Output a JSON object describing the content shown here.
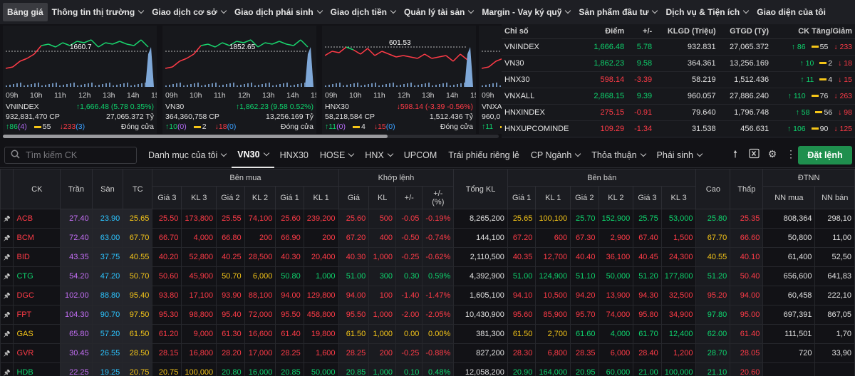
{
  "nav": {
    "items": [
      "Bảng giá",
      "Thông tin thị trường",
      "Giao dịch cơ sở",
      "Giao dịch phái sinh",
      "Giao dịch tiền",
      "Quản lý tài sản",
      "Margin - Vay ký quỹ",
      "Sản phẩm đầu tư",
      "Dịch vụ & Tiện ích",
      "Giao diện của tôi"
    ]
  },
  "index_cards": [
    {
      "name": "VNINDEX",
      "ref_label": "1660.7",
      "change": "↑1,666.48 (5.78 0.35%)",
      "volume": "932,831,470 CP",
      "value": "27,065.372 Tỷ",
      "up": "↑86",
      "ceil": "(4)",
      "ref": "55",
      "down": "↓233",
      "floor": "(3)",
      "status": "Đóng cửa",
      "dir": "up"
    },
    {
      "name": "VN30",
      "ref_label": "1852.65",
      "change": "↑1,862.23 (9.58 0.52%)",
      "volume": "364,360,758 CP",
      "value": "13,256.169 Tỷ",
      "up": "↑10",
      "ceil": "(0)",
      "ref": "2",
      "down": "↓18",
      "floor": "(0)",
      "status": "Đóng cửa",
      "dir": "up"
    },
    {
      "name": "HNX30",
      "ref_label": "601.53",
      "change": "↓598.14 (-3.39 -0.56%)",
      "volume": "58,218,584 CP",
      "value": "1,512.436 Tỷ",
      "up": "↑11",
      "ceil": "(0)",
      "ref": "4",
      "down": "↓15",
      "floor": "(0)",
      "status": "Đóng cửa",
      "dir": "down"
    },
    {
      "name": "VNXALL",
      "ref_label": "",
      "change": "",
      "volume": "960,0",
      "value": "",
      "up": "↑11",
      "ceil": "",
      "ref": "",
      "down": "",
      "floor": "",
      "status": "",
      "dir": "up"
    }
  ],
  "time_ticks": [
    "09h",
    "10h",
    "11h",
    "12h",
    "13h",
    "14h",
    "15h"
  ],
  "market": {
    "headers": [
      "Chỉ số",
      "Điểm",
      "+/-",
      "KLGD (Triệu)",
      "GTGD (Tỷ)",
      "CK Tăng/Giảm"
    ],
    "rows": [
      {
        "name": "VNINDEX",
        "point": "1,666.48",
        "chg": "5.78",
        "vol": "932.831",
        "val": "27,065.372",
        "up": "↑ 86",
        "ref": "55",
        "down": "↓ 233",
        "dir": "up"
      },
      {
        "name": "VN30",
        "point": "1,862.23",
        "chg": "9.58",
        "vol": "364.361",
        "val": "13,256.169",
        "up": "↑ 10",
        "ref": "2",
        "down": "↓ 18",
        "dir": "up"
      },
      {
        "name": "HNX30",
        "point": "598.14",
        "chg": "-3.39",
        "vol": "58.219",
        "val": "1,512.436",
        "up": "↑ 11",
        "ref": "4",
        "down": "↓ 15",
        "dir": "down"
      },
      {
        "name": "VNXALL",
        "point": "2,868.15",
        "chg": "9.39",
        "vol": "960.057",
        "val": "27,886.240",
        "up": "↑ 110",
        "ref": "76",
        "down": "↓ 263",
        "dir": "up"
      },
      {
        "name": "HNXINDEX",
        "point": "275.15",
        "chg": "-0.91",
        "vol": "79.640",
        "val": "1,796.748",
        "up": "↑ 58",
        "ref": "56",
        "down": "↓ 98",
        "dir": "down"
      },
      {
        "name": "HNXUPCOMINDE",
        "point": "109.29",
        "chg": "-1.34",
        "vol": "31.538",
        "val": "456.631",
        "up": "↑ 106",
        "ref": "90",
        "down": "↓ 125",
        "dir": "down"
      }
    ]
  },
  "search": {
    "placeholder": "Tìm kiếm CK"
  },
  "tabs": [
    {
      "label": "Danh mục của tôi",
      "chev": true
    },
    {
      "label": "VN30",
      "chev": true,
      "active": true
    },
    {
      "label": "HNX30"
    },
    {
      "label": "HOSE",
      "chev": true
    },
    {
      "label": "HNX",
      "chev": true
    },
    {
      "label": "UPCOM"
    },
    {
      "label": "Trái phiếu riêng lẻ"
    },
    {
      "label": "CP Ngành",
      "chev": true
    },
    {
      "label": "Thỏa thuận",
      "chev": true
    },
    {
      "label": "Phái sinh",
      "chev": true
    }
  ],
  "order_button": "Đặt lệnh",
  "board": {
    "groups": {
      "buy": "Bên mua",
      "match": "Khớp lệnh",
      "sell": "Bên bán",
      "foreign": "ĐTNN"
    },
    "headers": {
      "ck": "CK",
      "ceil": "Trần",
      "floor": "Sàn",
      "ref": "TC",
      "p3": "Giá 3",
      "v3": "KL 3",
      "p2": "Giá 2",
      "v2": "KL 2",
      "p1": "Giá 1",
      "v1": "KL 1",
      "mp": "Giá",
      "mv": "KL",
      "chg": "+/-",
      "pct": "+/-\n(%)",
      "total": "Tổng KL",
      "high": "Cao",
      "low": "Thấp",
      "nnbuy": "NN mua",
      "nnsell": "NN bán"
    },
    "rows": [
      {
        "ck": "ACB",
        "c": "dn",
        "ceil": "27.40",
        "floor": "23.90",
        "ref": "25.65",
        "b": [
          [
            "25.50",
            "173,800",
            "dn"
          ],
          [
            "25.55",
            "74,100",
            "dn"
          ],
          [
            "25.60",
            "239,200",
            "dn"
          ]
        ],
        "m": [
          "25.60",
          "500",
          "-0.05",
          "-0.19%",
          "dn"
        ],
        "total": "8,265,200",
        "s": [
          [
            "25.65",
            "100,100",
            "ref"
          ],
          [
            "25.70",
            "152,900",
            "up"
          ],
          [
            "25.75",
            "53,000",
            "up"
          ]
        ],
        "high": [
          "25.80",
          "up"
        ],
        "low": [
          "25.35",
          "dn"
        ],
        "nnbuy": "808,364",
        "nnsell": "298,10"
      },
      {
        "ck": "BCM",
        "c": "dn",
        "ceil": "72.40",
        "floor": "63.00",
        "ref": "67.70",
        "b": [
          [
            "66.70",
            "4,000",
            "dn"
          ],
          [
            "66.80",
            "200",
            "dn"
          ],
          [
            "66.90",
            "200",
            "dn"
          ]
        ],
        "m": [
          "67.20",
          "400",
          "-0.50",
          "-0.74%",
          "dn"
        ],
        "total": "144,100",
        "s": [
          [
            "67.20",
            "600",
            "dn"
          ],
          [
            "67.30",
            "2,900",
            "dn"
          ],
          [
            "67.40",
            "1,500",
            "dn"
          ]
        ],
        "high": [
          "67.70",
          "ref"
        ],
        "low": [
          "66.60",
          "dn"
        ],
        "nnbuy": "50,800",
        "nnsell": "11,00"
      },
      {
        "ck": "BID",
        "c": "dn",
        "ceil": "43.35",
        "floor": "37.75",
        "ref": "40.55",
        "b": [
          [
            "40.20",
            "52,800",
            "dn"
          ],
          [
            "40.25",
            "28,500",
            "dn"
          ],
          [
            "40.30",
            "20,400",
            "dn"
          ]
        ],
        "m": [
          "40.30",
          "1,000",
          "-0.25",
          "-0.62%",
          "dn"
        ],
        "total": "2,110,500",
        "s": [
          [
            "40.35",
            "12,700",
            "dn"
          ],
          [
            "40.40",
            "36,100",
            "dn"
          ],
          [
            "40.45",
            "24,300",
            "dn"
          ]
        ],
        "high": [
          "40.55",
          "ref"
        ],
        "low": [
          "40.10",
          "dn"
        ],
        "nnbuy": "61,400",
        "nnsell": "52,50"
      },
      {
        "ck": "CTG",
        "c": "up",
        "ceil": "54.20",
        "floor": "47.20",
        "ref": "50.70",
        "b": [
          [
            "50.60",
            "45,900",
            "dn"
          ],
          [
            "50.70",
            "6,000",
            "ref"
          ],
          [
            "50.80",
            "1,000",
            "up"
          ]
        ],
        "m": [
          "51.00",
          "300",
          "0.30",
          "0.59%",
          "up"
        ],
        "total": "4,392,900",
        "s": [
          [
            "51.00",
            "124,900",
            "up"
          ],
          [
            "51.10",
            "50,000",
            "up"
          ],
          [
            "51.20",
            "177,800",
            "up"
          ]
        ],
        "high": [
          "51.20",
          "up"
        ],
        "low": [
          "50.40",
          "dn"
        ],
        "nnbuy": "656,600",
        "nnsell": "641,83"
      },
      {
        "ck": "DGC",
        "c": "dn",
        "ceil": "102.00",
        "floor": "88.80",
        "ref": "95.40",
        "b": [
          [
            "93.80",
            "17,100",
            "dn"
          ],
          [
            "93.90",
            "88,100",
            "dn"
          ],
          [
            "94.00",
            "129,800",
            "dn"
          ]
        ],
        "m": [
          "94.00",
          "100",
          "-1.40",
          "-1.47%",
          "dn"
        ],
        "total": "1,605,100",
        "s": [
          [
            "94.10",
            "10,500",
            "dn"
          ],
          [
            "94.20",
            "13,900",
            "dn"
          ],
          [
            "94.30",
            "32,500",
            "dn"
          ]
        ],
        "high": [
          "95.20",
          "dn"
        ],
        "low": [
          "94.00",
          "dn"
        ],
        "nnbuy": "60,458",
        "nnsell": "222,10"
      },
      {
        "ck": "FPT",
        "c": "dn",
        "ceil": "104.30",
        "floor": "90.70",
        "ref": "97.50",
        "b": [
          [
            "95.30",
            "98,800",
            "dn"
          ],
          [
            "95.40",
            "72,000",
            "dn"
          ],
          [
            "95.50",
            "458,800",
            "dn"
          ]
        ],
        "m": [
          "95.50",
          "1,000",
          "-2.00",
          "-2.05%",
          "dn"
        ],
        "total": "10,430,900",
        "s": [
          [
            "95.60",
            "85,900",
            "dn"
          ],
          [
            "95.70",
            "74,000",
            "dn"
          ],
          [
            "95.80",
            "34,900",
            "dn"
          ]
        ],
        "high": [
          "97.80",
          "up"
        ],
        "low": [
          "95.00",
          "dn"
        ],
        "nnbuy": "697,391",
        "nnsell": "867,05"
      },
      {
        "ck": "GAS",
        "c": "ref",
        "ceil": "65.80",
        "floor": "57.20",
        "ref": "61.50",
        "b": [
          [
            "61.20",
            "9,000",
            "dn"
          ],
          [
            "61.30",
            "16,600",
            "dn"
          ],
          [
            "61.40",
            "19,800",
            "dn"
          ]
        ],
        "m": [
          "61.50",
          "1,000",
          "0.00",
          "0.00%",
          "ref"
        ],
        "total": "381,300",
        "s": [
          [
            "61.50",
            "2,700",
            "ref"
          ],
          [
            "61.60",
            "4,000",
            "up"
          ],
          [
            "61.70",
            "12,400",
            "up"
          ]
        ],
        "high": [
          "62.00",
          "up"
        ],
        "low": [
          "61.40",
          "dn"
        ],
        "nnbuy": "111,501",
        "nnsell": "1,70"
      },
      {
        "ck": "GVR",
        "c": "dn",
        "ceil": "30.45",
        "floor": "26.55",
        "ref": "28.50",
        "b": [
          [
            "28.15",
            "16,800",
            "dn"
          ],
          [
            "28.20",
            "17,000",
            "dn"
          ],
          [
            "28.25",
            "1,600",
            "dn"
          ]
        ],
        "m": [
          "28.25",
          "200",
          "-0.25",
          "-0.88%",
          "dn"
        ],
        "total": "827,200",
        "s": [
          [
            "28.30",
            "6,800",
            "dn"
          ],
          [
            "28.35",
            "6,000",
            "dn"
          ],
          [
            "28.40",
            "1,200",
            "dn"
          ]
        ],
        "high": [
          "28.70",
          "up"
        ],
        "low": [
          "28.05",
          "dn"
        ],
        "nnbuy": "720",
        "nnsell": "33,90"
      },
      {
        "ck": "HDB",
        "c": "up",
        "ceil": "22.25",
        "floor": "19.25",
        "ref": "20.75",
        "b": [
          [
            "20.75",
            "100,000",
            "ref"
          ],
          [
            "20.80",
            "16,000",
            "up"
          ],
          [
            "20.85",
            "50,000",
            "up"
          ]
        ],
        "m": [
          "20.85",
          "1,000",
          "0.10",
          "0.48%",
          "up"
        ],
        "total": "12,058,200",
        "s": [
          [
            "20.90",
            "164,000",
            "up"
          ],
          [
            "20.95",
            "60,000",
            "up"
          ],
          [
            "21.00",
            "100,000",
            "up"
          ]
        ],
        "high": [
          "21.10",
          "up"
        ],
        "low": [
          "20.60",
          "dn"
        ],
        "nnbuy": "",
        "nnsell": ""
      }
    ]
  }
}
